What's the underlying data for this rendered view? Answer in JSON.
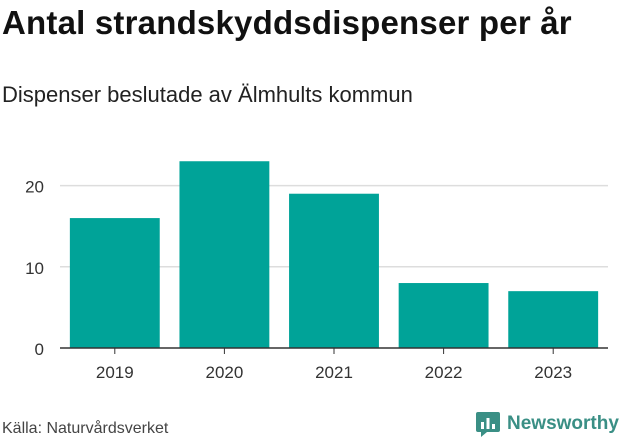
{
  "header": {
    "title": "Antal strandskyddsdispenser per år",
    "subtitle": "Dispenser beslutade av Älmhults kommun"
  },
  "footer": {
    "source": "Källa: Naturvårdsverket",
    "brand": "Newsworthy",
    "brand_icon": "chart-logo-icon",
    "brand_color": "#3a8f85"
  },
  "chart_data": {
    "type": "bar",
    "categories": [
      "2019",
      "2020",
      "2021",
      "2022",
      "2023"
    ],
    "values": [
      16,
      23,
      19,
      8,
      7
    ],
    "title": "Antal strandskyddsdispenser per år",
    "subtitle": "Dispenser beslutade av Älmhults kommun",
    "xlabel": "",
    "ylabel": "",
    "ylim": [
      0,
      25
    ],
    "yticks": [
      0,
      10,
      20
    ],
    "grid": true,
    "legend": "none",
    "bar_color": "#00a398",
    "grid_color": "#dddddd"
  }
}
